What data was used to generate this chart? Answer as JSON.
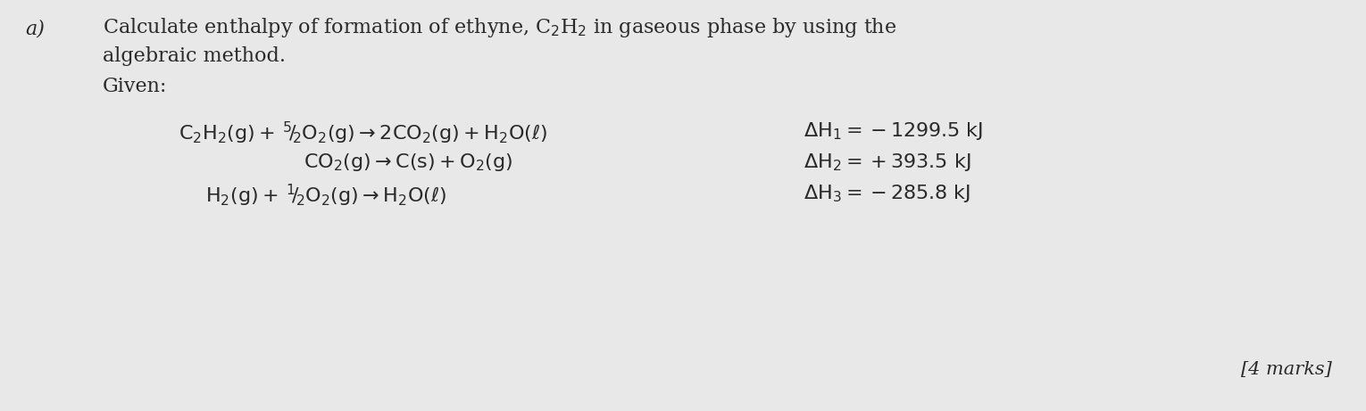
{
  "bg_color": "#e8e8e8",
  "text_color": "#2a2a2a",
  "label_a": "a)",
  "line1": "Calculate enthalpy of formation of ethyne, C$_2$H$_2$ in gaseous phase by using the",
  "line2": "algebraic method.",
  "line3": "Given:",
  "eq1": "$\\mathrm{C_2H_2(g) + {^5\\!/\\!_2}O_2(g) \\rightarrow 2CO_2(g) + H_2O(\\ell)}$",
  "eq2": "$\\mathrm{CO_2(g) \\rightarrow C(s) + O_2(g)}$",
  "eq3": "$\\mathrm{H_2(g) + {^1\\!/\\!_2}O_2(g) \\rightarrow H_2O(\\ell)}$",
  "dh1": "$\\mathrm{\\Delta H_1 = -1299.5\\ kJ}$",
  "dh2": "$\\mathrm{\\Delta H_2 = +393.5\\ kJ}$",
  "dh3": "$\\mathrm{\\Delta H_3 = -285.8\\ kJ}$",
  "marks": "[4 marks]",
  "font_size": 16,
  "font_size_marks": 15
}
